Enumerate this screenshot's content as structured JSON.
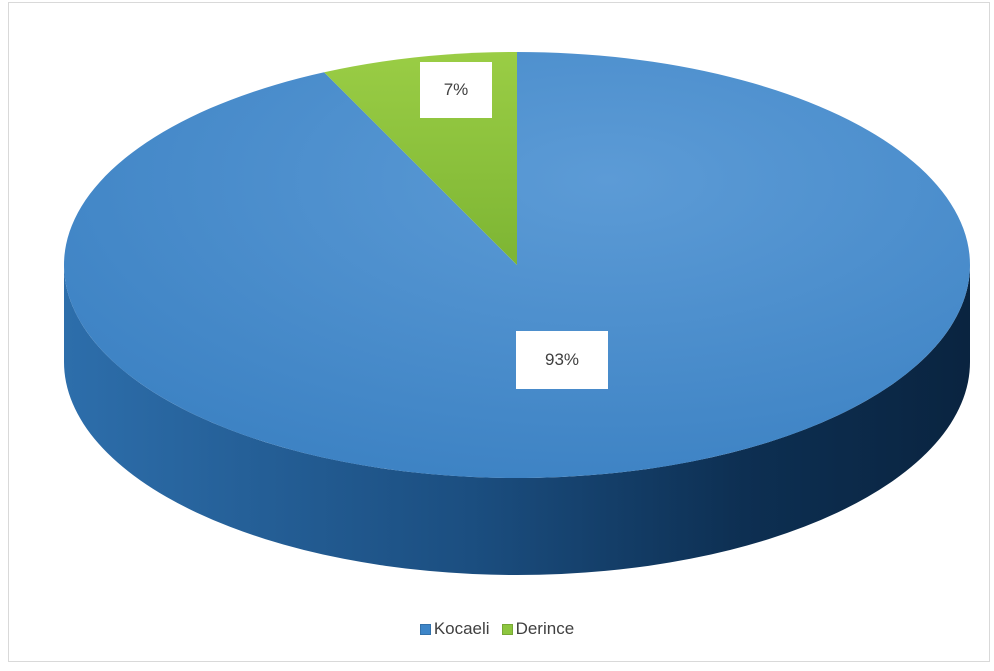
{
  "chart_data": {
    "type": "pie",
    "title": "",
    "categories": [
      "Kocaeli",
      "Derince"
    ],
    "values": [
      93,
      7
    ],
    "labels": [
      "93%",
      "7%"
    ],
    "colors": [
      "#3d85c8",
      "#8dc63f"
    ],
    "legend_position": "bottom",
    "legend": [
      "Kocaeli",
      "Derince"
    ]
  }
}
